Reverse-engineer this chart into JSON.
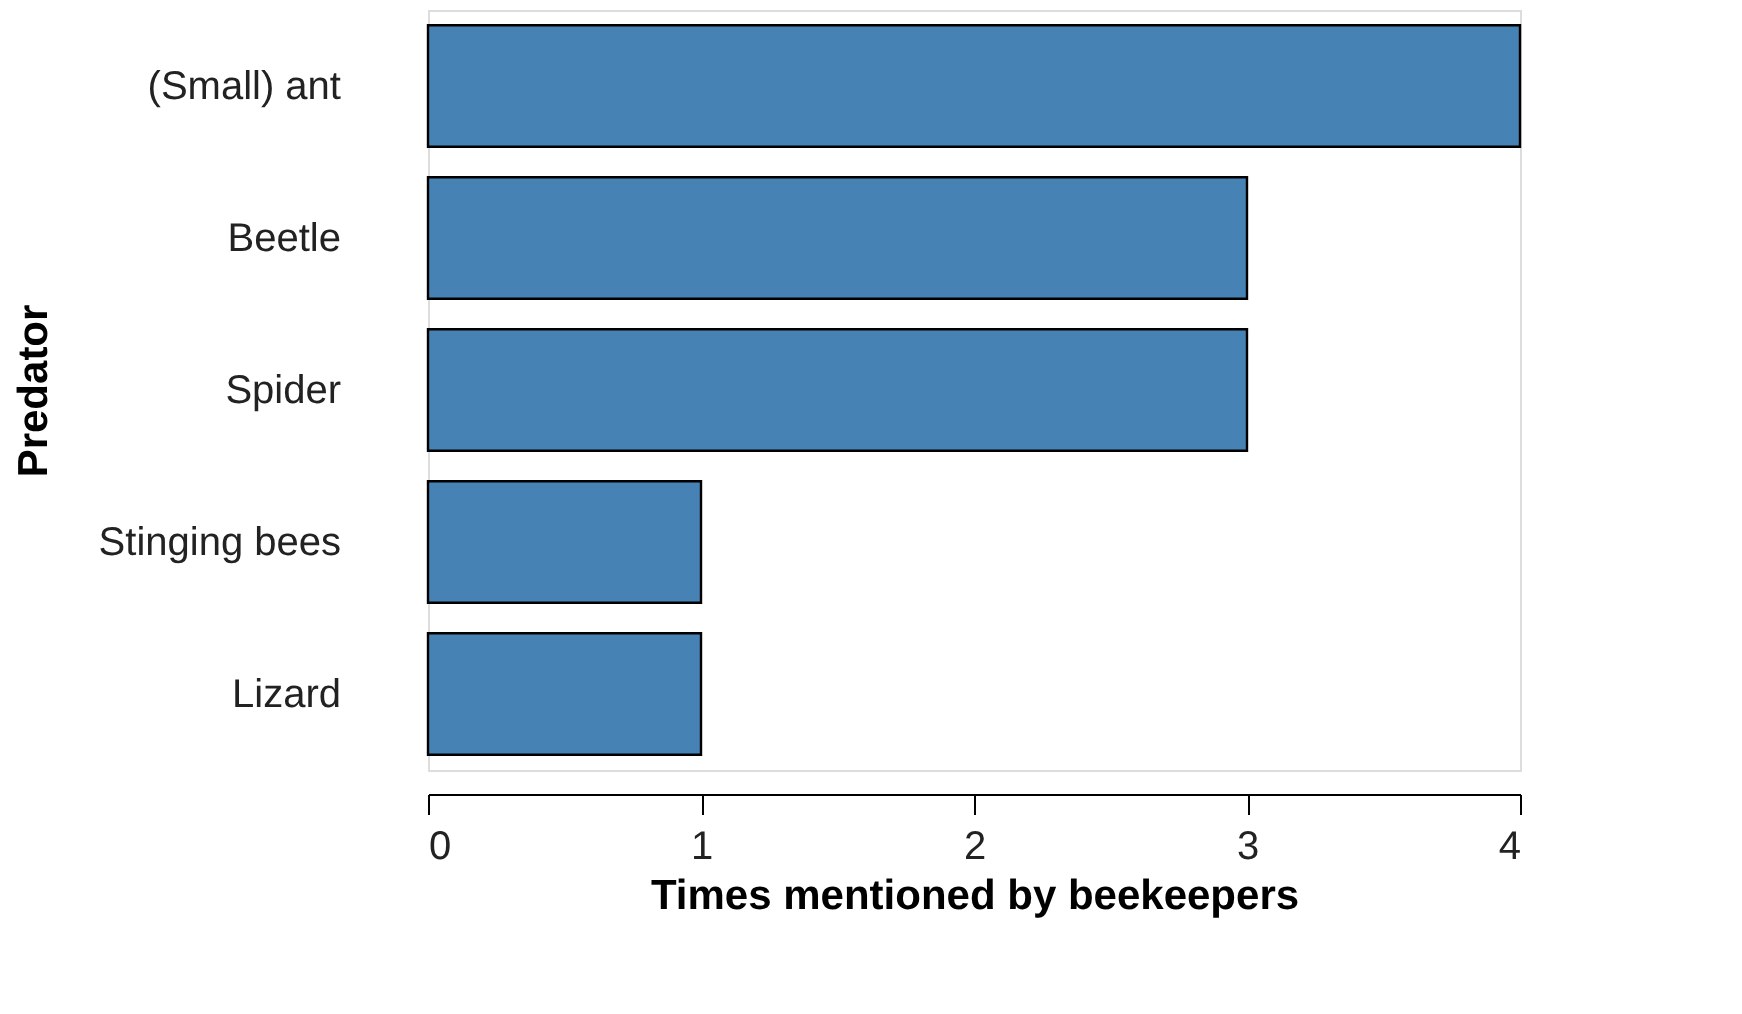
{
  "chart_data": {
    "type": "bar",
    "orientation": "horizontal",
    "xlabel": "Times mentioned by beekeepers",
    "ylabel": "Predator",
    "categories": [
      "(Small) ant",
      "Beetle",
      "Spider",
      "Stinging bees",
      "Lizard"
    ],
    "values": [
      4,
      3,
      3,
      1,
      1
    ],
    "color": "#4682b4",
    "xlim": [
      0,
      4
    ],
    "xticks": [
      0,
      1,
      2,
      3,
      4
    ],
    "grid": false
  }
}
